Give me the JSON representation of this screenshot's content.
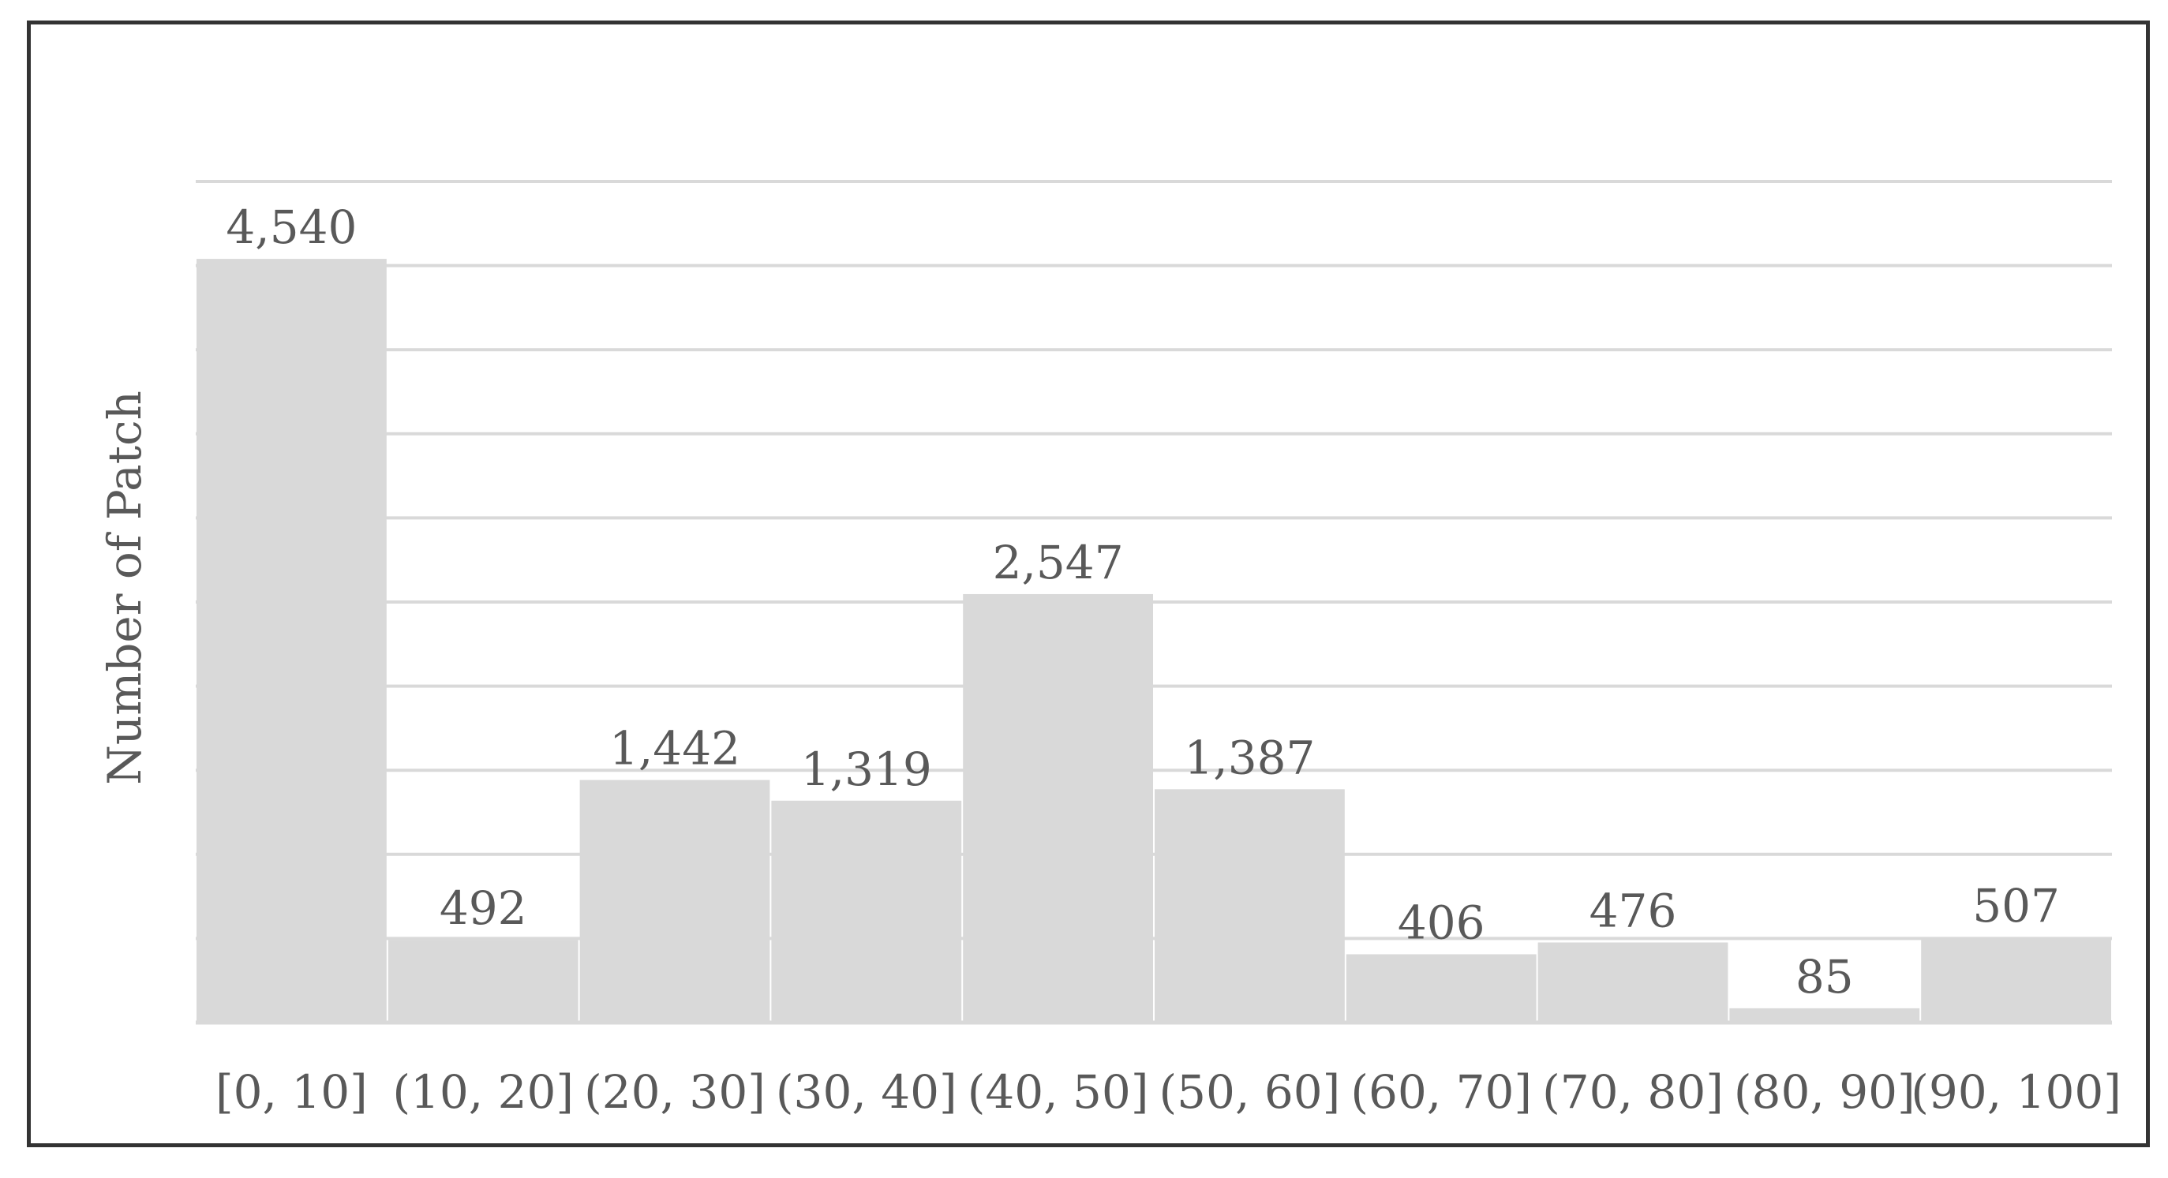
{
  "chart_data": {
    "type": "bar",
    "title": "",
    "xlabel": "",
    "ylabel": "Number of Patch",
    "categories": [
      "[0, 10]",
      "(10, 20]",
      "(20, 30]",
      "(30, 40]",
      "(40, 50]",
      "(50, 60]",
      "(60, 70]",
      "(70, 80]",
      "(80, 90]",
      "(90, 100]"
    ],
    "values": [
      4540,
      492,
      1442,
      1319,
      2547,
      1387,
      406,
      476,
      85,
      507
    ],
    "value_labels": [
      "4,540",
      "492",
      "1,442",
      "1,319",
      "2,547",
      "1,387",
      "406",
      "476",
      "85",
      "507"
    ],
    "ylim": [
      0,
      5000
    ],
    "grid": true,
    "legend": "none",
    "colors": {
      "bar": "#d9d9d9",
      "gridline": "#d9d9d9",
      "axis": "#d9d9d9",
      "text": "#595959",
      "frame": "#333333"
    }
  }
}
